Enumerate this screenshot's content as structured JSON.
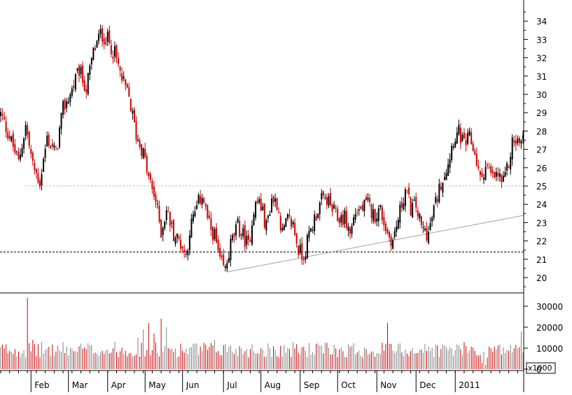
{
  "chart_data": [
    {
      "type": "candlestick",
      "panel": "price",
      "title": "",
      "xlabel": "",
      "ylabel": "",
      "ylim": [
        19.2,
        35.0
      ],
      "yticks": [
        20,
        21,
        22,
        23,
        24,
        25,
        26,
        27,
        28,
        29,
        30,
        31,
        32,
        33,
        34
      ],
      "yticks_label": [
        "20",
        "21",
        "22",
        "23",
        "24",
        "25",
        "26",
        "27",
        "28",
        "29",
        "30",
        "31",
        "32",
        "33",
        "34"
      ],
      "months": [
        "Feb",
        "Mar",
        "Apr",
        "May",
        "Jun",
        "Jul",
        "Aug",
        "Sep",
        "Oct",
        "Nov",
        "Dec",
        "2011"
      ],
      "up_color": "#000000",
      "down_color": "#cc0000",
      "close_path": [
        [
          0,
          28.9
        ],
        [
          5,
          27.7
        ],
        [
          10,
          26.3
        ],
        [
          14,
          28.3
        ],
        [
          18,
          26.1
        ],
        [
          22,
          25.2
        ],
        [
          26,
          27.6
        ],
        [
          31,
          26.8
        ],
        [
          35,
          29.2
        ],
        [
          39,
          30.0
        ],
        [
          44,
          31.3
        ],
        [
          48,
          30.3
        ],
        [
          52,
          32.3
        ],
        [
          56,
          33.3
        ],
        [
          60,
          33.0
        ],
        [
          64,
          32.2
        ],
        [
          68,
          30.8
        ],
        [
          72,
          29.8
        ],
        [
          76,
          27.8
        ],
        [
          80,
          26.8
        ],
        [
          83,
          25.4
        ],
        [
          87,
          24.2
        ],
        [
          90,
          22.5
        ],
        [
          93,
          23.7
        ],
        [
          97,
          22.4
        ],
        [
          101,
          21.9
        ],
        [
          104,
          21.2
        ],
        [
          106,
          22.6
        ],
        [
          110,
          23.8
        ],
        [
          113,
          24.6
        ],
        [
          117,
          22.8
        ],
        [
          120,
          22.3
        ],
        [
          123,
          20.8
        ],
        [
          126,
          20.4
        ],
        [
          129,
          21.8
        ],
        [
          133,
          22.8
        ],
        [
          136,
          22.3
        ],
        [
          139,
          21.7
        ],
        [
          142,
          23.8
        ],
        [
          145,
          24.2
        ],
        [
          149,
          22.8
        ],
        [
          152,
          24.3
        ],
        [
          155,
          24.1
        ],
        [
          158,
          22.4
        ],
        [
          161,
          23.1
        ],
        [
          164,
          22.9
        ],
        [
          167,
          21.5
        ],
        [
          170,
          21.2
        ],
        [
          173,
          22.3
        ],
        [
          177,
          23.5
        ],
        [
          180,
          24.2
        ],
        [
          183,
          24.3
        ],
        [
          186,
          23.7
        ],
        [
          189,
          23.2
        ],
        [
          193,
          23.3
        ],
        [
          196,
          22.4
        ],
        [
          199,
          23.6
        ],
        [
          203,
          23.8
        ],
        [
          206,
          24.0
        ],
        [
          209,
          23.4
        ],
        [
          213,
          23.7
        ],
        [
          217,
          22.4
        ],
        [
          220,
          22.0
        ],
        [
          223,
          23.2
        ],
        [
          227,
          24.8
        ],
        [
          230,
          23.8
        ],
        [
          233,
          23.9
        ],
        [
          236,
          22.7
        ],
        [
          240,
          22.4
        ],
        [
          243,
          23.7
        ],
        [
          247,
          25.2
        ],
        [
          251,
          26.3
        ],
        [
          254,
          27.6
        ],
        [
          257,
          27.9
        ],
        [
          260,
          27.2
        ],
        [
          263,
          27.6
        ],
        [
          266,
          26.8
        ],
        [
          269,
          25.3
        ],
        [
          272,
          26.1
        ],
        [
          276,
          25.4
        ],
        [
          279,
          25.6
        ],
        [
          282,
          25.1
        ],
        [
          285,
          26.2
        ],
        [
          287,
          27.4
        ]
      ],
      "support_line": {
        "level": 21.4,
        "from": "start",
        "to": "end"
      },
      "reference_line": {
        "level": 25.0,
        "from": "Feb",
        "to": "end"
      },
      "trend_line": {
        "start": [
          126,
          20.3
        ],
        "end": [
          292,
          23.4
        ]
      }
    },
    {
      "type": "bar",
      "panel": "volume",
      "title": "",
      "xlabel": "",
      "ylabel": "",
      "ylim": [
        0,
        36000
      ],
      "yticks": [
        0,
        10000,
        20000,
        30000
      ],
      "yticks_label": [
        "0",
        "10000",
        "20000",
        "30000"
      ],
      "unit_label": "x1000",
      "up_color": "#808080",
      "down_color": "#cc0000",
      "base_level": 10000,
      "spikes": [
        [
          15,
          34000
        ],
        [
          18,
          14000
        ],
        [
          77,
          15000
        ],
        [
          80,
          19000
        ],
        [
          83,
          22000
        ],
        [
          86,
          17000
        ],
        [
          90,
          24000
        ],
        [
          93,
          20000
        ],
        [
          120,
          14000
        ],
        [
          126,
          12000
        ],
        [
          217,
          22000
        ],
        [
          270,
          3000
        ],
        [
          272,
          2000
        ],
        [
          292,
          18000
        ]
      ]
    }
  ]
}
